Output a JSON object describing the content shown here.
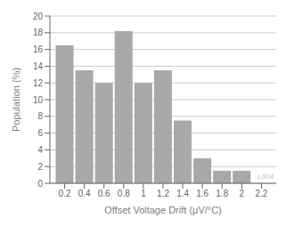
{
  "chart_data": {
    "type": "bar",
    "x": [
      0.2,
      0.4,
      0.6,
      0.8,
      1.0,
      1.2,
      1.4,
      1.6,
      1.8,
      2.0,
      2.2
    ],
    "values": [
      16.5,
      13.5,
      12.0,
      18.2,
      12.0,
      13.5,
      7.5,
      3.0,
      1.5,
      1.5,
      0.0
    ],
    "color": "#a8a8a8",
    "xlabel": "Offset Voltage Drift (μV/°C)",
    "ylabel": "Population (%)",
    "xlim": [
      0.05,
      2.35
    ],
    "xticks": [
      0.2,
      0.4,
      0.6,
      0.8,
      1,
      1.2,
      1.4,
      1.6,
      1.8,
      2,
      2.2
    ],
    "ylim": [
      0,
      20
    ],
    "yticks": [
      0,
      2,
      4,
      6,
      8,
      10,
      12,
      14,
      16,
      18,
      20
    ],
    "grid": true,
    "annotations": [
      "L004"
    ]
  }
}
